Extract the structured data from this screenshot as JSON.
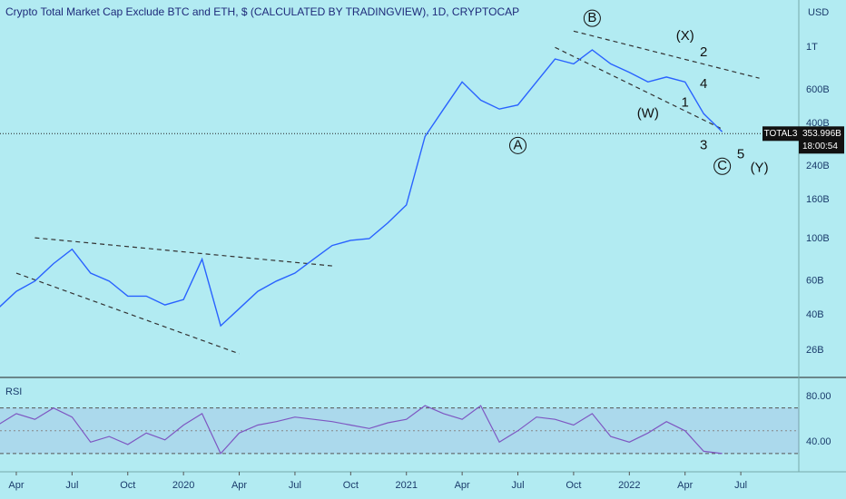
{
  "chart_data": [
    {
      "type": "line",
      "title": "Crypto Total Market Cap Exclude BTC and ETH, $ (CALCULATED BY TRADINGVIEW), 1D, CRYPTOCAP",
      "unit_label": "USD",
      "log_scale": true,
      "color": "#2962ff",
      "x": [
        "2019-03",
        "2019-04",
        "2019-05",
        "2019-06",
        "2019-07",
        "2019-08",
        "2019-09",
        "2019-10",
        "2019-11",
        "2019-12",
        "2020-01",
        "2020-02",
        "2020-03",
        "2020-04",
        "2020-05",
        "2020-06",
        "2020-07",
        "2020-08",
        "2020-09",
        "2020-10",
        "2020-11",
        "2020-12",
        "2021-01",
        "2021-02",
        "2021-03",
        "2021-04",
        "2021-05",
        "2021-06",
        "2021-07",
        "2021-08",
        "2021-09",
        "2021-10",
        "2021-11",
        "2021-12",
        "2022-01",
        "2022-02",
        "2022-03",
        "2022-04",
        "2022-05",
        "2022-06"
      ],
      "values": [
        43,
        53,
        60,
        74,
        88,
        66,
        60,
        50,
        50,
        45,
        48,
        78,
        35,
        43,
        53,
        60,
        66,
        78,
        92,
        98,
        100,
        121,
        150,
        342,
        476,
        660,
        530,
        476,
        500,
        660,
        870,
        820,
        970,
        820,
        740,
        660,
        700,
        660,
        450,
        362
      ],
      "xlim": [
        "2019-03",
        "2022-10"
      ],
      "xticks": [
        {
          "value": "2019-04",
          "label": "Apr"
        },
        {
          "value": "2019-07",
          "label": "Jul"
        },
        {
          "value": "2019-10",
          "label": "Oct"
        },
        {
          "value": "2020-01",
          "label": "2020"
        },
        {
          "value": "2020-04",
          "label": "Apr"
        },
        {
          "value": "2020-07",
          "label": "Jul"
        },
        {
          "value": "2020-10",
          "label": "Oct"
        },
        {
          "value": "2021-01",
          "label": "2021"
        },
        {
          "value": "2021-04",
          "label": "Apr"
        },
        {
          "value": "2021-07",
          "label": "Jul"
        },
        {
          "value": "2021-10",
          "label": "Oct"
        },
        {
          "value": "2022-01",
          "label": "2022"
        },
        {
          "value": "2022-04",
          "label": "Apr"
        },
        {
          "value": "2022-07",
          "label": "Jul"
        }
      ],
      "ylim": [
        19,
        1770
      ],
      "yticks": [
        {
          "value": 26,
          "label": "26B"
        },
        {
          "value": 40,
          "label": "40B"
        },
        {
          "value": 60,
          "label": "60B"
        },
        {
          "value": 100,
          "label": "100B"
        },
        {
          "value": 160,
          "label": "160B"
        },
        {
          "value": 240,
          "label": "240B"
        },
        {
          "value": 400,
          "label": "400B"
        },
        {
          "value": 600,
          "label": "600B"
        },
        {
          "value": 1000,
          "label": "1T"
        }
      ],
      "last": {
        "value": 353.996,
        "label": "353.996B",
        "symbol": "TOTAL3",
        "countdown": "18:00:54"
      },
      "trendlines": [
        {
          "x": [
            "2019-04",
            "2020-04"
          ],
          "values": [
            66,
            25
          ]
        },
        {
          "x": [
            "2019-05",
            "2020-09"
          ],
          "values": [
            101,
            72
          ]
        },
        {
          "x": [
            "2021-10",
            "2022-08"
          ],
          "values": [
            1217,
            690
          ]
        },
        {
          "x": [
            "2021-09",
            "2022-06"
          ],
          "values": [
            1000,
            374
          ]
        }
      ],
      "annotations": [
        {
          "text": "B",
          "x": "2021-11",
          "y": 1420,
          "circled": true
        },
        {
          "text": "(X)",
          "x": "2022-04",
          "y": 1140
        },
        {
          "text": "2",
          "x": "2022-05",
          "y": 937
        },
        {
          "text": "4",
          "x": "2022-05",
          "y": 640
        },
        {
          "text": "1",
          "x": "2022-04",
          "y": 513
        },
        {
          "text": "(W)",
          "x": "2022-02",
          "y": 450
        },
        {
          "text": "A",
          "x": "2021-07",
          "y": 307,
          "circled": true
        },
        {
          "text": "3",
          "x": "2022-05",
          "y": 307
        },
        {
          "text": "C",
          "x": "2022-06",
          "y": 239,
          "circled": true
        },
        {
          "text": "5",
          "x": "2022-07",
          "y": 275
        },
        {
          "text": "(Y)",
          "x": "2022-08",
          "y": 233
        }
      ]
    },
    {
      "type": "line",
      "title": "RSI",
      "color": "#7e57c2",
      "values": [
        55,
        65,
        60,
        70,
        62,
        40,
        45,
        38,
        48,
        42,
        55,
        65,
        30,
        48,
        55,
        58,
        62,
        60,
        58,
        55,
        52,
        57,
        60,
        72,
        65,
        60,
        72,
        40,
        50,
        62,
        60,
        55,
        65,
        45,
        40,
        48,
        58,
        50,
        32,
        30
      ],
      "ylim": [
        14,
        96
      ],
      "yticks": [
        {
          "value": 80,
          "label": "80.00"
        },
        {
          "value": 40,
          "label": "40.00"
        }
      ],
      "bands": [
        30,
        70
      ],
      "midline": 50
    }
  ]
}
